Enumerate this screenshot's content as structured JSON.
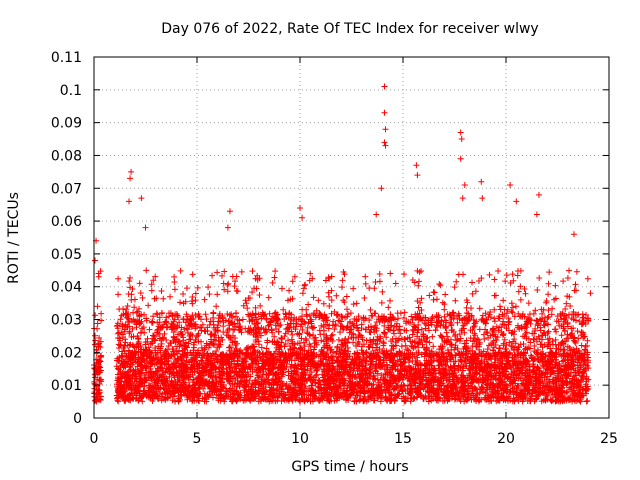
{
  "chart_data": {
    "type": "scatter",
    "title": "Day 076 of 2022, Rate Of TEC Index for receiver wlwy",
    "xlabel": "GPS time / hours",
    "ylabel": "ROTI / TECUs",
    "xlim": [
      0,
      25
    ],
    "ylim": [
      0,
      0.11
    ],
    "x_ticks": [
      "0",
      "5",
      "10",
      "15",
      "20",
      "25"
    ],
    "y_ticks": [
      "0",
      "0.01",
      "0.02",
      "0.03",
      "0.04",
      "0.05",
      "0.06",
      "0.07",
      "0.08",
      "0.09",
      "0.1",
      "0.11"
    ],
    "grid": true,
    "marker": "+",
    "series_color": "#ff0000",
    "series": [
      {
        "name": "ROTI",
        "segments": [
          [
            0,
            0.35
          ],
          [
            1.1,
            24
          ]
        ],
        "baseline_band": [
          0.005,
          0.02
        ],
        "typical_max": 0.045,
        "notable_points": [
          {
            "x": 0.1,
            "y": 0.054
          },
          {
            "x": 0.05,
            "y": 0.048
          },
          {
            "x": 1.8,
            "y": 0.075
          },
          {
            "x": 1.75,
            "y": 0.073
          },
          {
            "x": 1.7,
            "y": 0.066
          },
          {
            "x": 2.3,
            "y": 0.067
          },
          {
            "x": 2.5,
            "y": 0.058
          },
          {
            "x": 6.6,
            "y": 0.063
          },
          {
            "x": 6.5,
            "y": 0.058
          },
          {
            "x": 10.0,
            "y": 0.064
          },
          {
            "x": 10.1,
            "y": 0.061
          },
          {
            "x": 13.7,
            "y": 0.062
          },
          {
            "x": 13.95,
            "y": 0.07
          },
          {
            "x": 14.1,
            "y": 0.101
          },
          {
            "x": 14.1,
            "y": 0.093
          },
          {
            "x": 14.15,
            "y": 0.088
          },
          {
            "x": 14.1,
            "y": 0.084
          },
          {
            "x": 14.15,
            "y": 0.083
          },
          {
            "x": 15.65,
            "y": 0.077
          },
          {
            "x": 15.7,
            "y": 0.074
          },
          {
            "x": 17.8,
            "y": 0.087
          },
          {
            "x": 17.85,
            "y": 0.085
          },
          {
            "x": 17.8,
            "y": 0.079
          },
          {
            "x": 18.0,
            "y": 0.071
          },
          {
            "x": 17.9,
            "y": 0.067
          },
          {
            "x": 18.8,
            "y": 0.072
          },
          {
            "x": 18.85,
            "y": 0.067
          },
          {
            "x": 20.2,
            "y": 0.071
          },
          {
            "x": 20.5,
            "y": 0.066
          },
          {
            "x": 21.6,
            "y": 0.068
          },
          {
            "x": 21.5,
            "y": 0.062
          },
          {
            "x": 23.3,
            "y": 0.056
          },
          {
            "x": 24.1,
            "y": 0.038
          }
        ]
      }
    ]
  }
}
